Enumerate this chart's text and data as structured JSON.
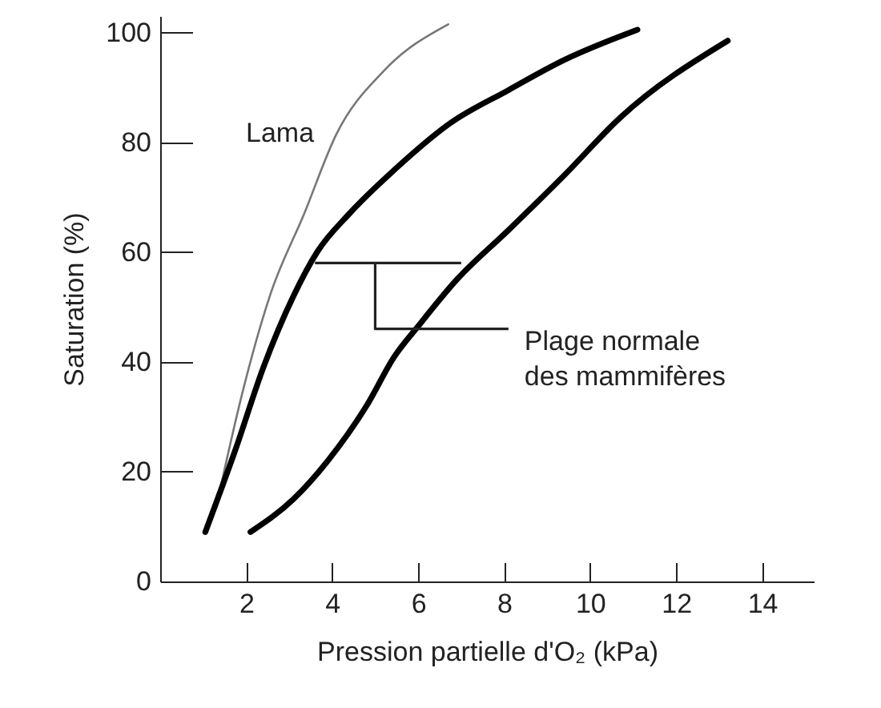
{
  "chart_data": {
    "type": "line",
    "xlabel": "Pression partielle d'O₂ (kPa)",
    "ylabel": "Saturation (%)",
    "xlim": [
      0,
      15.2
    ],
    "ylim": [
      0,
      103
    ],
    "xticks": [
      2,
      4,
      6,
      8,
      10,
      12,
      14
    ],
    "yticks": [
      0,
      20,
      40,
      60,
      80,
      100
    ],
    "series": [
      {
        "name": "Lama",
        "color": "#777777",
        "x": [
          1.4,
          1.9,
          2.55,
          3.35,
          4.1,
          5.2,
          6.7
        ],
        "values": [
          17,
          34,
          52,
          67,
          81.5,
          93,
          101.5
        ]
      },
      {
        "color": "#000000",
        "x": [
          1.05,
          1.75,
          2.4,
          3.1,
          3.65,
          4.4,
          5.45,
          6.75,
          8.1,
          9.4,
          11.1
        ],
        "values": [
          9,
          24,
          39,
          52,
          60,
          67,
          75,
          83.5,
          89.5,
          95,
          100.5
        ]
      },
      {
        "color": "#000000",
        "x": [
          2.1,
          3.1,
          3.9,
          4.8,
          5.45,
          6,
          6.9,
          8.1,
          9.4,
          10.7,
          13.2
        ],
        "values": [
          9,
          15,
          22,
          32,
          41,
          46.5,
          55,
          64,
          74,
          84.5,
          98.5
        ]
      },
      {
        "color": "#222222",
        "x": [
          3.6,
          7.0
        ],
        "values": [
          58,
          58
        ]
      },
      {
        "color": "#222222",
        "x": [
          5,
          5,
          8.1
        ],
        "values": [
          58,
          46,
          46
        ]
      }
    ],
    "annotations": [
      {
        "text": "Plage normale des mammifères",
        "x": 8.1,
        "y": 46
      }
    ]
  }
}
